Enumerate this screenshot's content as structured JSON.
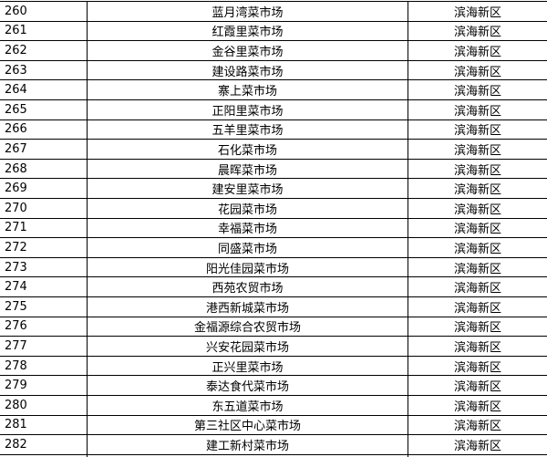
{
  "table": {
    "rows": [
      [
        260,
        "蓝月湾菜市场",
        "滨海新区"
      ],
      [
        261,
        "红霞里菜市场",
        "滨海新区"
      ],
      [
        262,
        "金谷里菜市场",
        "滨海新区"
      ],
      [
        263,
        "建设路菜市场",
        "滨海新区"
      ],
      [
        264,
        "寨上菜市场",
        "滨海新区"
      ],
      [
        265,
        "正阳里菜市场",
        "滨海新区"
      ],
      [
        266,
        "五羊里菜市场",
        "滨海新区"
      ],
      [
        267,
        "石化菜市场",
        "滨海新区"
      ],
      [
        268,
        "晨晖菜市场",
        "滨海新区"
      ],
      [
        269,
        "建安里菜市场",
        "滨海新区"
      ],
      [
        270,
        "花园菜市场",
        "滨海新区"
      ],
      [
        271,
        "幸福菜市场",
        "滨海新区"
      ],
      [
        272,
        "同盛菜市场",
        "滨海新区"
      ],
      [
        273,
        "阳光佳园菜市场",
        "滨海新区"
      ],
      [
        274,
        "西苑农贸市场",
        "滨海新区"
      ],
      [
        275,
        "港西新城菜市场",
        "滨海新区"
      ],
      [
        276,
        "金福源综合农贸市场",
        "滨海新区"
      ],
      [
        277,
        "兴安花园菜市场",
        "滨海新区"
      ],
      [
        278,
        "正兴里菜市场",
        "滨海新区"
      ],
      [
        279,
        "泰达食代菜市场",
        "滨海新区"
      ],
      [
        280,
        "东五道菜市场",
        "滨海新区"
      ],
      [
        281,
        "第三社区中心菜市场",
        "滨海新区"
      ],
      [
        282,
        "建工新村菜市场",
        "滨海新区"
      ]
    ]
  }
}
